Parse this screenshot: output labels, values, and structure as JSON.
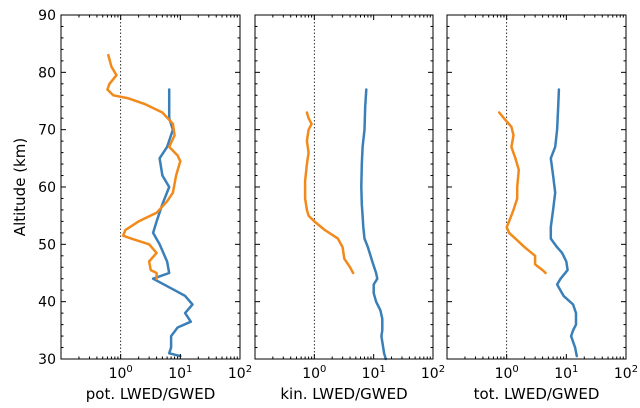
{
  "chart_data": {
    "type": "line",
    "shared_y_axis": {
      "label": "Altitude (km)",
      "ylim": [
        30,
        90
      ],
      "ticks": [
        30,
        40,
        50,
        60,
        70,
        80,
        90
      ],
      "tick_labels": [
        "30",
        "40",
        "50",
        "60",
        "70",
        "80",
        "90"
      ]
    },
    "x_scale": "log",
    "xlim": [
      0.1,
      100
    ],
    "x_ticks": [
      1,
      10,
      100
    ],
    "x_tick_labels": [
      {
        "base": "10",
        "exp": "0"
      },
      {
        "base": "10",
        "exp": "1"
      },
      {
        "base": "10",
        "exp": "2"
      }
    ],
    "reference_line_x": 1,
    "colors": {
      "blue": "#3a7fb8",
      "orange": "#f28a1b"
    },
    "panels": [
      {
        "xlabel": "pot. LWED/GWED",
        "series": [
          {
            "color": "blue",
            "points": [
              [
                6.5,
                77
              ],
              [
                6.5,
                74
              ],
              [
                6.5,
                72
              ],
              [
                7.5,
                70
              ],
              [
                6,
                67
              ],
              [
                4.5,
                65
              ],
              [
                5,
                62
              ],
              [
                6.5,
                60
              ],
              [
                5,
                57
              ],
              [
                4,
                54
              ],
              [
                3.5,
                52
              ],
              [
                4.5,
                50
              ],
              [
                6,
                47
              ],
              [
                6.5,
                45
              ],
              [
                3.5,
                44
              ],
              [
                8,
                42
              ],
              [
                12,
                41
              ],
              [
                16,
                39.5
              ],
              [
                12,
                38
              ],
              [
                15,
                36.5
              ],
              [
                9,
                35.5
              ],
              [
                7,
                34
              ],
              [
                7,
                32
              ],
              [
                6.5,
                31
              ],
              [
                10,
                30.5
              ]
            ]
          },
          {
            "color": "orange",
            "points": [
              [
                0.62,
                83
              ],
              [
                0.7,
                81
              ],
              [
                0.85,
                79.5
              ],
              [
                0.65,
                78
              ],
              [
                0.6,
                77
              ],
              [
                0.75,
                76
              ],
              [
                1.3,
                75.5
              ],
              [
                2.5,
                74.5
              ],
              [
                5,
                73
              ],
              [
                7.5,
                71
              ],
              [
                8,
                69
              ],
              [
                6.5,
                67
              ],
              [
                9,
                65.5
              ],
              [
                10,
                64.5
              ],
              [
                8.5,
                62
              ],
              [
                7.5,
                59
              ],
              [
                6,
                57.5
              ],
              [
                4,
                55.5
              ],
              [
                2,
                54
              ],
              [
                1.2,
                52.5
              ],
              [
                1.1,
                51.5
              ],
              [
                1.5,
                51
              ],
              [
                3,
                50
              ],
              [
                4,
                48.5
              ],
              [
                3,
                47
              ],
              [
                3.2,
                45.5
              ],
              [
                4,
                45
              ],
              [
                4,
                44
              ]
            ]
          }
        ]
      },
      {
        "xlabel": "kin. LWED/GWED",
        "series": [
          {
            "color": "blue",
            "points": [
              [
                7.5,
                77
              ],
              [
                7.2,
                74
              ],
              [
                7,
                70
              ],
              [
                6.5,
                67
              ],
              [
                6.3,
                64
              ],
              [
                6.2,
                60
              ],
              [
                6.3,
                57
              ],
              [
                6.5,
                55
              ],
              [
                6.7,
                53
              ],
              [
                7,
                51
              ],
              [
                8,
                49.5
              ],
              [
                9.5,
                47
              ],
              [
                11,
                45
              ],
              [
                11.5,
                44
              ],
              [
                10,
                43
              ],
              [
                10,
                41.5
              ],
              [
                11,
                40
              ],
              [
                13,
                38.5
              ],
              [
                14,
                37
              ],
              [
                14,
                35
              ],
              [
                13.5,
                34
              ],
              [
                14,
                33
              ],
              [
                14.5,
                32
              ],
              [
                15,
                31
              ],
              [
                16,
                30
              ]
            ]
          },
          {
            "color": "orange",
            "points": [
              [
                0.75,
                73
              ],
              [
                0.8,
                72
              ],
              [
                0.9,
                71
              ],
              [
                0.8,
                70
              ],
              [
                0.75,
                68
              ],
              [
                0.8,
                66
              ],
              [
                0.75,
                64
              ],
              [
                0.7,
                61
              ],
              [
                0.7,
                58
              ],
              [
                0.75,
                56
              ],
              [
                0.8,
                55
              ],
              [
                1,
                54
              ],
              [
                1.5,
                52.5
              ],
              [
                2.5,
                51
              ],
              [
                3,
                49.5
              ],
              [
                3.2,
                47.5
              ],
              [
                4,
                46
              ],
              [
                4.5,
                45
              ]
            ]
          }
        ]
      },
      {
        "xlabel": "tot. LWED/GWED",
        "series": [
          {
            "color": "blue",
            "points": [
              [
                7.5,
                77
              ],
              [
                7.3,
                74
              ],
              [
                7,
                70
              ],
              [
                6.5,
                67
              ],
              [
                5.5,
                65
              ],
              [
                6,
                62
              ],
              [
                6.5,
                59
              ],
              [
                6,
                56
              ],
              [
                5.5,
                53
              ],
              [
                5.5,
                51
              ],
              [
                7,
                49.5
              ],
              [
                8.5,
                48.5
              ],
              [
                10,
                47
              ],
              [
                10.5,
                45.5
              ],
              [
                8,
                44
              ],
              [
                7,
                43
              ],
              [
                9,
                41
              ],
              [
                13,
                39.5
              ],
              [
                14.5,
                38
              ],
              [
                14.5,
                36
              ],
              [
                13,
                35
              ],
              [
                12,
                34
              ],
              [
                13,
                33
              ],
              [
                14,
                32
              ],
              [
                15,
                30.5
              ]
            ]
          },
          {
            "color": "orange",
            "points": [
              [
                0.75,
                73
              ],
              [
                0.9,
                72
              ],
              [
                1.2,
                70.5
              ],
              [
                1.3,
                69
              ],
              [
                1.2,
                67
              ],
              [
                1.4,
                65
              ],
              [
                1.6,
                63
              ],
              [
                1.5,
                60
              ],
              [
                1.5,
                58
              ],
              [
                1.3,
                56
              ],
              [
                1.1,
                54
              ],
              [
                1,
                53
              ],
              [
                1.1,
                52
              ],
              [
                1.4,
                51
              ],
              [
                2,
                49.5
              ],
              [
                3,
                48
              ],
              [
                3,
                46.5
              ],
              [
                4,
                45.5
              ],
              [
                4.5,
                45
              ]
            ]
          }
        ]
      }
    ]
  }
}
